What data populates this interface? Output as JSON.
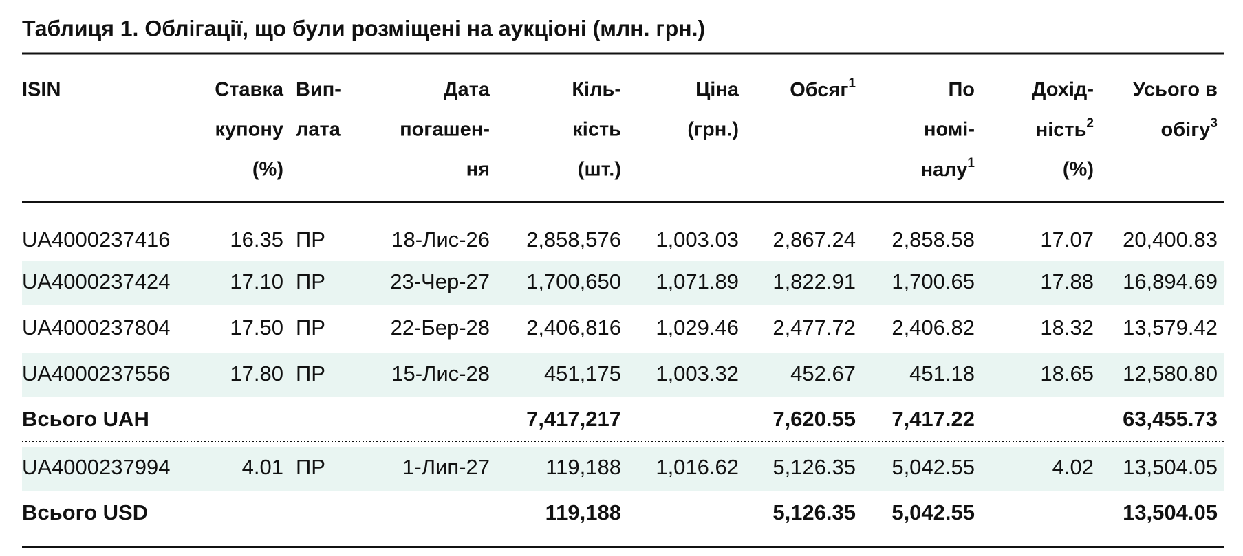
{
  "title": "Таблиця 1. Облігації, що були розміщені на аукціоні (млн. грн.)",
  "table": {
    "columns": [
      {
        "lines": [
          "ISIN"
        ]
      },
      {
        "lines": [
          "Ставка",
          "купону",
          "(%)"
        ]
      },
      {
        "lines": [
          "Вип-",
          "лата"
        ]
      },
      {
        "lines": [
          "Дата",
          "погашен-",
          "ня"
        ]
      },
      {
        "lines": [
          "Кіль-",
          "кість",
          "(шт.)"
        ]
      },
      {
        "lines": [
          "Ціна",
          "(грн.)"
        ]
      },
      {
        "lines": [
          {
            "text": "Обсяг",
            "sup": "1"
          }
        ]
      },
      {
        "lines": [
          "По",
          "номі-",
          {
            "text": "налу",
            "sup": "1"
          }
        ]
      },
      {
        "lines": [
          "Дохід-",
          {
            "text": "ність",
            "sup": "2"
          },
          "(%)"
        ]
      },
      {
        "lines": [
          "Усього в",
          {
            "text": "обігу",
            "sup": "3"
          }
        ]
      }
    ],
    "rows": [
      {
        "cells": [
          "UA4000237416",
          "16.35",
          "ПР",
          "18-Лис-26",
          "2,858,576",
          "1,003.03",
          "2,867.24",
          "2,858.58",
          "17.07",
          "20,400.83"
        ],
        "total": false,
        "shaded": false
      },
      {
        "cells": [
          "UA4000237424",
          "17.10",
          "ПР",
          "23-Чер-27",
          "1,700,650",
          "1,071.89",
          "1,822.91",
          "1,700.65",
          "17.88",
          "16,894.69"
        ],
        "total": false,
        "shaded": true
      },
      {
        "cells": [
          "UA4000237804",
          "17.50",
          "ПР",
          "22-Бер-28",
          "2,406,816",
          "1,029.46",
          "2,477.72",
          "2,406.82",
          "18.32",
          "13,579.42"
        ],
        "total": false,
        "shaded": false
      },
      {
        "cells": [
          "UA4000237556",
          "17.80",
          "ПР",
          "15-Лис-28",
          "451,175",
          "1,003.32",
          "452.67",
          "451.18",
          "18.65",
          "12,580.80"
        ],
        "total": false,
        "shaded": true
      },
      {
        "cells": [
          "Всього UAH",
          null,
          null,
          null,
          "7,417,217",
          null,
          "7,620.55",
          "7,417.22",
          null,
          "63,455.73"
        ],
        "total": true,
        "shaded": false
      },
      {
        "cells": [
          "UA4000237994",
          "4.01",
          "ПР",
          "1-Лип-27",
          "119,188",
          "1,016.62",
          "5,126.35",
          "5,042.55",
          "4.02",
          "13,504.05"
        ],
        "total": false,
        "shaded": true
      },
      {
        "cells": [
          "Всього USD",
          null,
          null,
          null,
          "119,188",
          null,
          "5,126.35",
          "5,042.55",
          null,
          "13,504.05"
        ],
        "total": true,
        "shaded": false
      }
    ]
  }
}
